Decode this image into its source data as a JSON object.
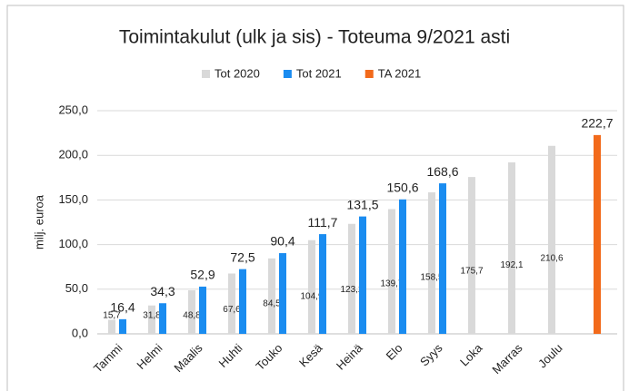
{
  "chart_data": {
    "type": "bar",
    "title": "Toimintakulut (ulk ja sis) - Toteuma 9/2021 asti",
    "y_label": "milj. euroa",
    "categories": [
      "Tammi",
      "Helmi",
      "Maalis",
      "Huhti",
      "Touko",
      "Kesä",
      "Heinä",
      "Elo",
      "Syys",
      "Loka",
      "Marras",
      "Joulu",
      null
    ],
    "series": [
      {
        "name": "Tot 2020",
        "color": "#d9d9d9",
        "values": [
          15.7,
          31.8,
          48.8,
          67.6,
          84.5,
          104.9,
          123.2,
          139.7,
          158.5,
          175.7,
          192.1,
          210.6,
          null
        ],
        "value_labels": [
          "15,7",
          "31,8",
          "48,8",
          "67,6",
          "84,5",
          "104,9",
          "123,2",
          "139,7",
          "158,5",
          "175,7",
          "192,1",
          "210,6",
          null
        ]
      },
      {
        "name": "Tot 2021",
        "color": "#1a8cf0",
        "values": [
          16.4,
          34.3,
          52.9,
          72.5,
          90.4,
          111.7,
          131.5,
          150.6,
          168.6,
          null,
          null,
          null,
          null
        ],
        "value_labels": [
          "16,4",
          "34,3",
          "52,9",
          "72,5",
          "90,4",
          "111,7",
          "131,5",
          "150,6",
          "168,6",
          null,
          null,
          null,
          null
        ]
      },
      {
        "name": "TA 2021",
        "color": "#f26a1b",
        "values": [
          null,
          null,
          null,
          null,
          null,
          null,
          null,
          null,
          null,
          null,
          null,
          null,
          222.7
        ],
        "value_labels": [
          null,
          null,
          null,
          null,
          null,
          null,
          null,
          null,
          null,
          null,
          null,
          null,
          "222,7"
        ]
      }
    ],
    "ylim": [
      0,
      250
    ],
    "yticks": [
      {
        "value": 0,
        "label": "0,0"
      },
      {
        "value": 50,
        "label": "50,0"
      },
      {
        "value": 100,
        "label": "100,0"
      },
      {
        "value": 150,
        "label": "150,0"
      },
      {
        "value": 200,
        "label": "200,0"
      },
      {
        "value": 250,
        "label": "250,0"
      }
    ],
    "grid": true
  }
}
